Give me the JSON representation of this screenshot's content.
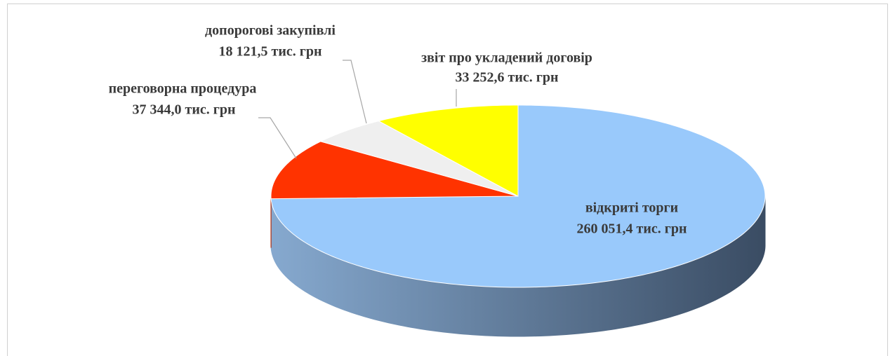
{
  "chart_data": {
    "type": "pie",
    "categories": [
      "відкриті торги",
      "переговорна процедура",
      "допорогові закупівлі",
      "звіт про укладений договір"
    ],
    "values": [
      260051.4,
      37344.0,
      18121.5,
      33252.6
    ],
    "value_labels": [
      "260 051,4 тис. грн",
      "37 344,0 тис. грн",
      "18 121,5 тис. грн",
      "33 252,6 тис. грн"
    ],
    "colors": [
      "#99c9fb",
      "#ff3300",
      "#efefef",
      "#ffff00"
    ]
  }
}
